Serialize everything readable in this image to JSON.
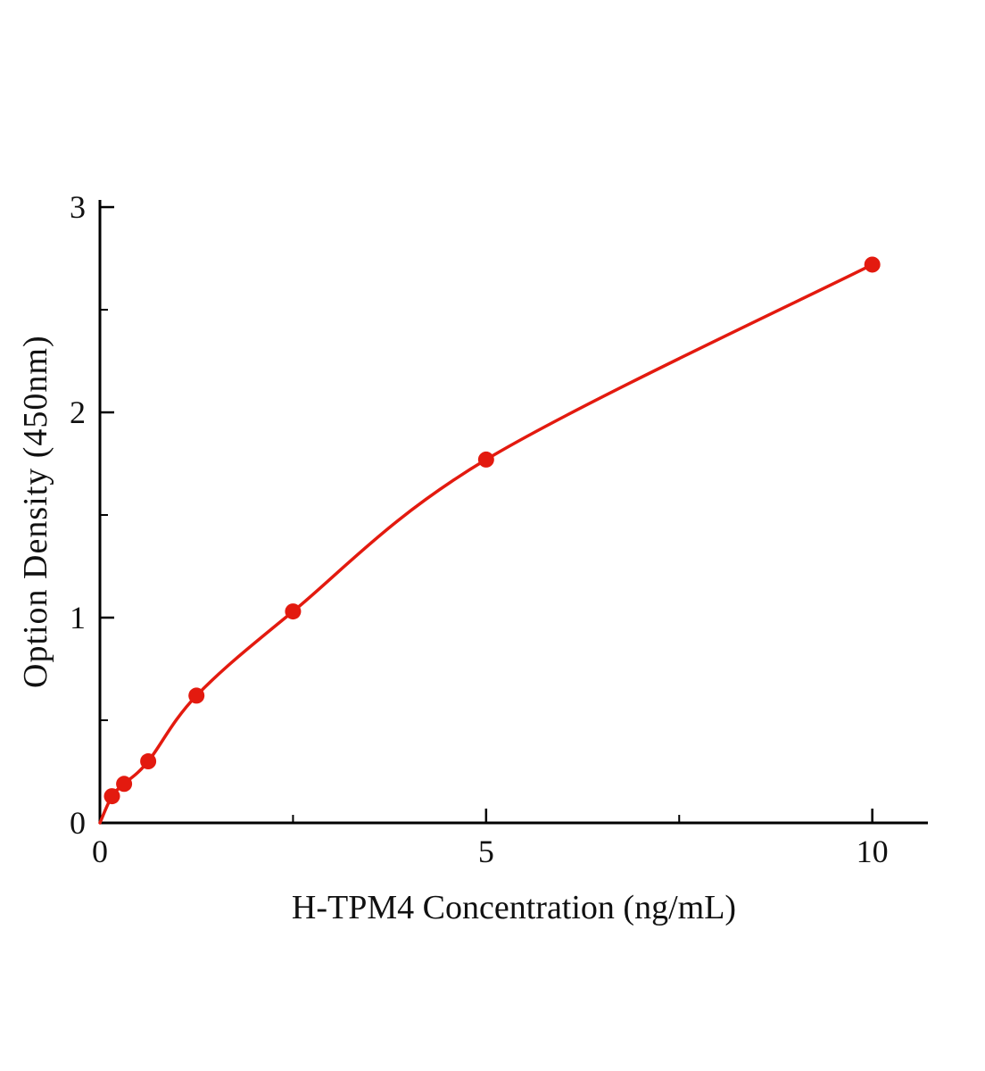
{
  "chart_data": {
    "type": "scatter",
    "title": "",
    "xlabel": "H-TPM4 Concentration (ng/mL)",
    "ylabel": "Option Density (450nm)",
    "x": [
      0.156,
      0.313,
      0.625,
      1.25,
      2.5,
      5,
      10
    ],
    "y": [
      0.13,
      0.19,
      0.3,
      0.62,
      1.03,
      1.77,
      2.72
    ],
    "curve_start": [
      0,
      0
    ],
    "xlim": [
      0,
      10.72
    ],
    "ylim": [
      0,
      3.035
    ],
    "x_major_ticks": [
      0,
      5,
      10
    ],
    "x_major_tick_labels": [
      "0",
      "5",
      "10"
    ],
    "x_minor_ticks": [
      2.5,
      7.5
    ],
    "y_major_ticks": [
      0,
      1,
      2,
      3
    ],
    "y_major_tick_labels": [
      "0",
      "1",
      "2",
      "3"
    ],
    "y_minor_ticks": [
      0.5,
      1.5,
      2.5
    ],
    "line_color": "#e31a0f",
    "marker_color": "#e31a0f",
    "axis_color": "#000000",
    "legend": [],
    "grid": false
  }
}
